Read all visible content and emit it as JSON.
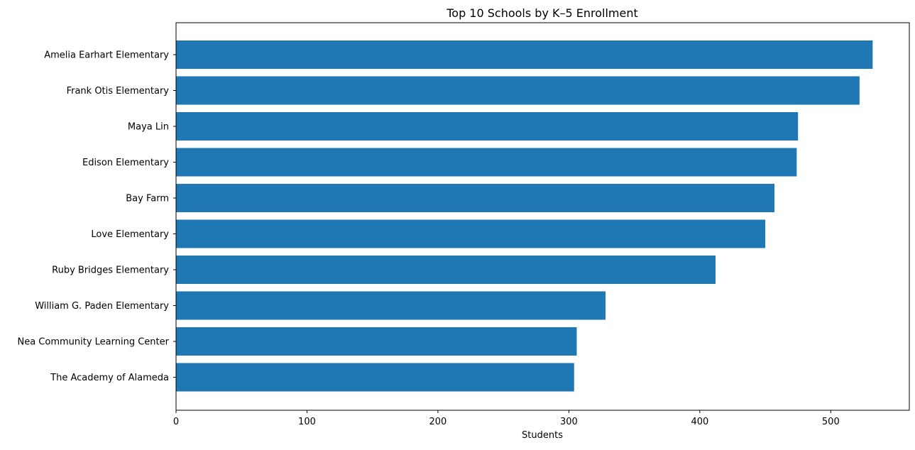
{
  "chart_data": {
    "type": "bar",
    "orientation": "horizontal",
    "title": "Top 10 Schools by K–5 Enrollment",
    "xlabel": "Students",
    "ylabel": "",
    "xlim": [
      0,
      560
    ],
    "xticks": [
      0,
      100,
      200,
      300,
      400,
      500
    ],
    "grid": false,
    "bar_color": "#1f77b4",
    "categories": [
      "Amelia Earhart Elementary",
      "Frank Otis Elementary",
      "Maya Lin",
      "Edison Elementary",
      "Bay Farm",
      "Love Elementary",
      "Ruby Bridges Elementary",
      "William G. Paden Elementary",
      "Nea Community Learning Center",
      "The Academy of Alameda"
    ],
    "values": [
      532,
      522,
      475,
      474,
      457,
      450,
      412,
      328,
      306,
      304
    ]
  }
}
